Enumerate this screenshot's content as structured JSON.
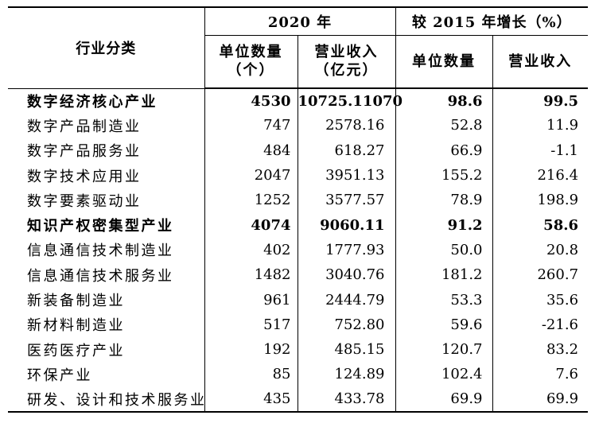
{
  "page": {
    "background": "#ffffff",
    "text_color": "#000000",
    "border_color": "#000000"
  },
  "table": {
    "industry_header": "行业分类",
    "group_2020": {
      "label": "2020 年",
      "units_line1": "单位数量",
      "units_line2": "（个）",
      "revenue_line1": "营业收入",
      "revenue_line2": "（亿元）"
    },
    "group_growth": {
      "label": "较 2015 年增长（%）",
      "units": "单位数量",
      "revenue": "营业收入"
    },
    "rows": [
      {
        "industry": "数字经济核心产业",
        "bold": true,
        "values": [
          "4530",
          "10725.11070",
          "98.6",
          "99.5"
        ]
      },
      {
        "industry": "数字产品制造业",
        "bold": false,
        "values": [
          "747",
          "2578.16",
          "52.8",
          "11.9"
        ]
      },
      {
        "industry": "数字产品服务业",
        "bold": false,
        "values": [
          "484",
          "618.27",
          "66.9",
          "-1.1"
        ]
      },
      {
        "industry": "数字技术应用业",
        "bold": false,
        "values": [
          "2047",
          "3951.13",
          "155.2",
          "216.4"
        ]
      },
      {
        "industry": "数字要素驱动业",
        "bold": false,
        "values": [
          "1252",
          "3577.57",
          "78.9",
          "198.9"
        ]
      },
      {
        "industry": "知识产权密集型产业",
        "bold": true,
        "values": [
          "4074",
          "9060.11",
          "91.2",
          "58.6"
        ]
      },
      {
        "industry": "信息通信技术制造业",
        "bold": false,
        "values": [
          "402",
          "1777.93",
          "50.0",
          "20.8"
        ]
      },
      {
        "industry": "信息通信技术服务业",
        "bold": false,
        "values": [
          "1482",
          "3040.76",
          "181.2",
          "260.7"
        ]
      },
      {
        "industry": "新装备制造业",
        "bold": false,
        "values": [
          "961",
          "2444.79",
          "53.3",
          "35.6"
        ]
      },
      {
        "industry": "新材料制造业",
        "bold": false,
        "values": [
          "517",
          "752.80",
          "59.6",
          "-21.6"
        ]
      },
      {
        "industry": "医药医疗产业",
        "bold": false,
        "values": [
          "192",
          "485.15",
          "120.7",
          "83.2"
        ]
      },
      {
        "industry": "环保产业",
        "bold": false,
        "values": [
          "85",
          "124.89",
          "102.4",
          "7.6"
        ]
      },
      {
        "industry": "研发、设计和技术服务业",
        "bold": false,
        "values": [
          "435",
          "433.78",
          "69.9",
          "69.9"
        ]
      }
    ]
  }
}
